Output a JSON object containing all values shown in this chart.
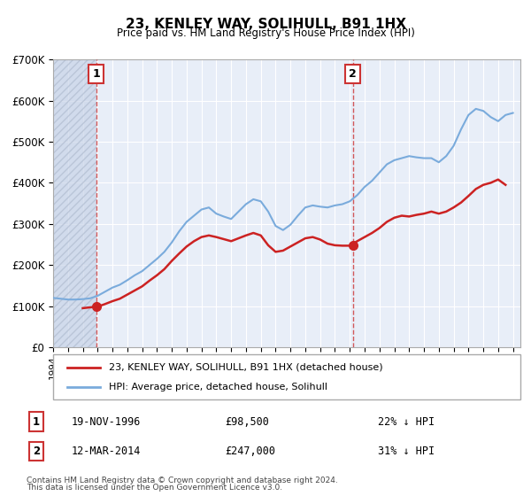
{
  "title": "23, KENLEY WAY, SOLIHULL, B91 1HX",
  "subtitle": "Price paid vs. HM Land Registry's House Price Index (HPI)",
  "xlabel": "",
  "ylabel": "",
  "ylim": [
    0,
    700000
  ],
  "xlim_start": 1994.0,
  "xlim_end": 2025.5,
  "background_color": "#ffffff",
  "plot_bg_color": "#e8eef8",
  "hatch_color": "#c8d4e8",
  "grid_color": "#ffffff",
  "hpi_color": "#7aabdc",
  "price_color": "#cc2222",
  "vline_color": "#cc3333",
  "marker1_date": 1996.9,
  "marker1_price": 98500,
  "marker2_date": 2014.2,
  "marker2_price": 247000,
  "legend_label_price": "23, KENLEY WAY, SOLIHULL, B91 1HX (detached house)",
  "legend_label_hpi": "HPI: Average price, detached house, Solihull",
  "annotation1_label": "1",
  "annotation2_label": "2",
  "table_row1": [
    "1",
    "19-NOV-1996",
    "£98,500",
    "22% ↓ HPI"
  ],
  "table_row2": [
    "2",
    "12-MAR-2014",
    "£247,000",
    "31% ↓ HPI"
  ],
  "footer1": "Contains HM Land Registry data © Crown copyright and database right 2024.",
  "footer2": "This data is licensed under the Open Government Licence v3.0.",
  "ytick_labels": [
    "£0",
    "£100K",
    "£200K",
    "£300K",
    "£400K",
    "£500K",
    "£600K",
    "£700K"
  ],
  "ytick_values": [
    0,
    100000,
    200000,
    300000,
    400000,
    500000,
    600000,
    700000
  ],
  "hpi_data": {
    "years": [
      1994.0,
      1994.5,
      1995.0,
      1995.5,
      1996.0,
      1996.5,
      1997.0,
      1997.5,
      1998.0,
      1998.5,
      1999.0,
      1999.5,
      2000.0,
      2000.5,
      2001.0,
      2001.5,
      2002.0,
      2002.5,
      2003.0,
      2003.5,
      2004.0,
      2004.5,
      2005.0,
      2005.5,
      2006.0,
      2006.5,
      2007.0,
      2007.5,
      2008.0,
      2008.5,
      2009.0,
      2009.5,
      2010.0,
      2010.5,
      2011.0,
      2011.5,
      2012.0,
      2012.5,
      2013.0,
      2013.5,
      2014.0,
      2014.5,
      2015.0,
      2015.5,
      2016.0,
      2016.5,
      2017.0,
      2017.5,
      2018.0,
      2018.5,
      2019.0,
      2019.5,
      2020.0,
      2020.5,
      2021.0,
      2021.5,
      2022.0,
      2022.5,
      2023.0,
      2023.5,
      2024.0,
      2024.5,
      2025.0
    ],
    "values": [
      120000,
      118000,
      116000,
      116000,
      117000,
      119000,
      125000,
      135000,
      145000,
      152000,
      163000,
      175000,
      185000,
      200000,
      215000,
      232000,
      255000,
      282000,
      305000,
      320000,
      335000,
      340000,
      325000,
      318000,
      312000,
      330000,
      348000,
      360000,
      355000,
      330000,
      295000,
      285000,
      298000,
      320000,
      340000,
      345000,
      342000,
      340000,
      345000,
      348000,
      355000,
      370000,
      390000,
      405000,
      425000,
      445000,
      455000,
      460000,
      465000,
      462000,
      460000,
      460000,
      450000,
      465000,
      490000,
      530000,
      565000,
      580000,
      575000,
      560000,
      550000,
      565000,
      570000
    ]
  },
  "price_data": {
    "years": [
      1996.0,
      1996.5,
      1997.0,
      1997.5,
      1998.0,
      1998.5,
      1999.0,
      1999.5,
      2000.0,
      2000.5,
      2001.0,
      2001.5,
      2002.0,
      2002.5,
      2003.0,
      2003.5,
      2004.0,
      2004.5,
      2005.0,
      2005.5,
      2006.0,
      2006.5,
      2007.0,
      2007.5,
      2008.0,
      2008.5,
      2009.0,
      2009.5,
      2010.0,
      2010.5,
      2011.0,
      2011.5,
      2012.0,
      2012.5,
      2013.0,
      2013.5,
      2014.0,
      2014.5,
      2015.0,
      2015.5,
      2016.0,
      2016.5,
      2017.0,
      2017.5,
      2018.0,
      2018.5,
      2019.0,
      2019.5,
      2020.0,
      2020.5,
      2021.0,
      2021.5,
      2022.0,
      2022.5,
      2023.0,
      2023.5,
      2024.0,
      2024.5
    ],
    "values": [
      95000,
      97000,
      98500,
      105000,
      112000,
      118000,
      128000,
      138000,
      148000,
      162000,
      175000,
      190000,
      210000,
      228000,
      245000,
      258000,
      268000,
      272000,
      268000,
      263000,
      258000,
      265000,
      272000,
      278000,
      272000,
      248000,
      232000,
      235000,
      245000,
      255000,
      265000,
      268000,
      262000,
      252000,
      248000,
      247000,
      247000,
      258000,
      268000,
      278000,
      290000,
      305000,
      315000,
      320000,
      318000,
      322000,
      325000,
      330000,
      325000,
      330000,
      340000,
      352000,
      368000,
      385000,
      395000,
      400000,
      408000,
      395000
    ]
  }
}
